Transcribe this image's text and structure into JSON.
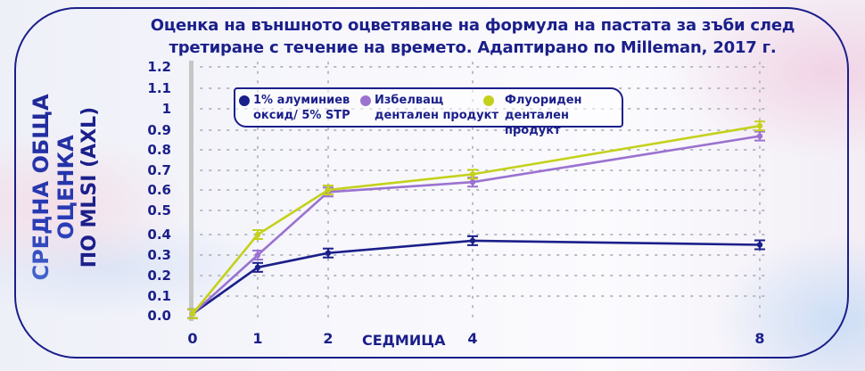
{
  "title": {
    "line1": "Оценка на външното оцветяване на формула на пастата за зъби след",
    "line2": "третиране с течение на времето. Адаптирано по Milleman, 2017 г."
  },
  "y_axis": {
    "title_line1": "СРЕДНА ОБЩА ОЦЕНКА",
    "title_line2": "ПО MLSI (AXL)",
    "ticks": [
      "1.2",
      "1.1",
      "1",
      "0.9",
      "0.8",
      "0.7",
      "0.6",
      "0.5",
      "0.4",
      "0.3",
      "0.2",
      "0.1",
      "0.0"
    ]
  },
  "x_axis": {
    "title": "СЕДМИЦА",
    "ticks": [
      "0",
      "1",
      "2",
      "4",
      "8"
    ]
  },
  "legend": [
    {
      "line1": "1% алуминиев",
      "line2": "оксид/ 5% STP",
      "color": "#1b1f8a"
    },
    {
      "line1": "Избелващ",
      "line2": "дентален продукт",
      "color": "#9b72d0"
    },
    {
      "line1": "Флуориден",
      "line2": "дентален продукт",
      "color": "#c4d11c"
    }
  ],
  "colors": {
    "navy": "#1b1f8a",
    "purple": "#9b72d0",
    "yellow": "#c4d11c",
    "axis_bar": "#c6c6c6"
  },
  "chart_data": {
    "type": "line",
    "title": "Оценка на външното оцветяване на формула на пастата за зъби след третиране с течение на времето. Адаптирано по Milleman, 2017 г.",
    "xlabel": "СЕДМИЦА",
    "ylabel": "СРЕДНА ОБЩА ОЦЕНКА ПО MLSI (AXL)",
    "x": [
      0,
      1,
      2,
      4,
      8
    ],
    "ylim": [
      0,
      1.2
    ],
    "yticks": [
      0.0,
      0.1,
      0.2,
      0.3,
      0.4,
      0.5,
      0.6,
      0.7,
      0.8,
      0.9,
      1.0,
      1.1,
      1.2
    ],
    "grid": "dotted",
    "legend_position": "top-inside",
    "error_bars": true,
    "series": [
      {
        "name": "1% алуминиев оксид/ 5% STP",
        "color": "#1b1f8a",
        "values": [
          0.01,
          0.24,
          0.31,
          0.37,
          0.35
        ]
      },
      {
        "name": "Избелващ дентален продукт",
        "color": "#9b72d0",
        "values": [
          0.01,
          0.3,
          0.59,
          0.64,
          0.87
        ]
      },
      {
        "name": "Флуориден дентален продукт",
        "color": "#c4d11c",
        "values": [
          0.01,
          0.4,
          0.6,
          0.68,
          0.92
        ]
      }
    ]
  }
}
